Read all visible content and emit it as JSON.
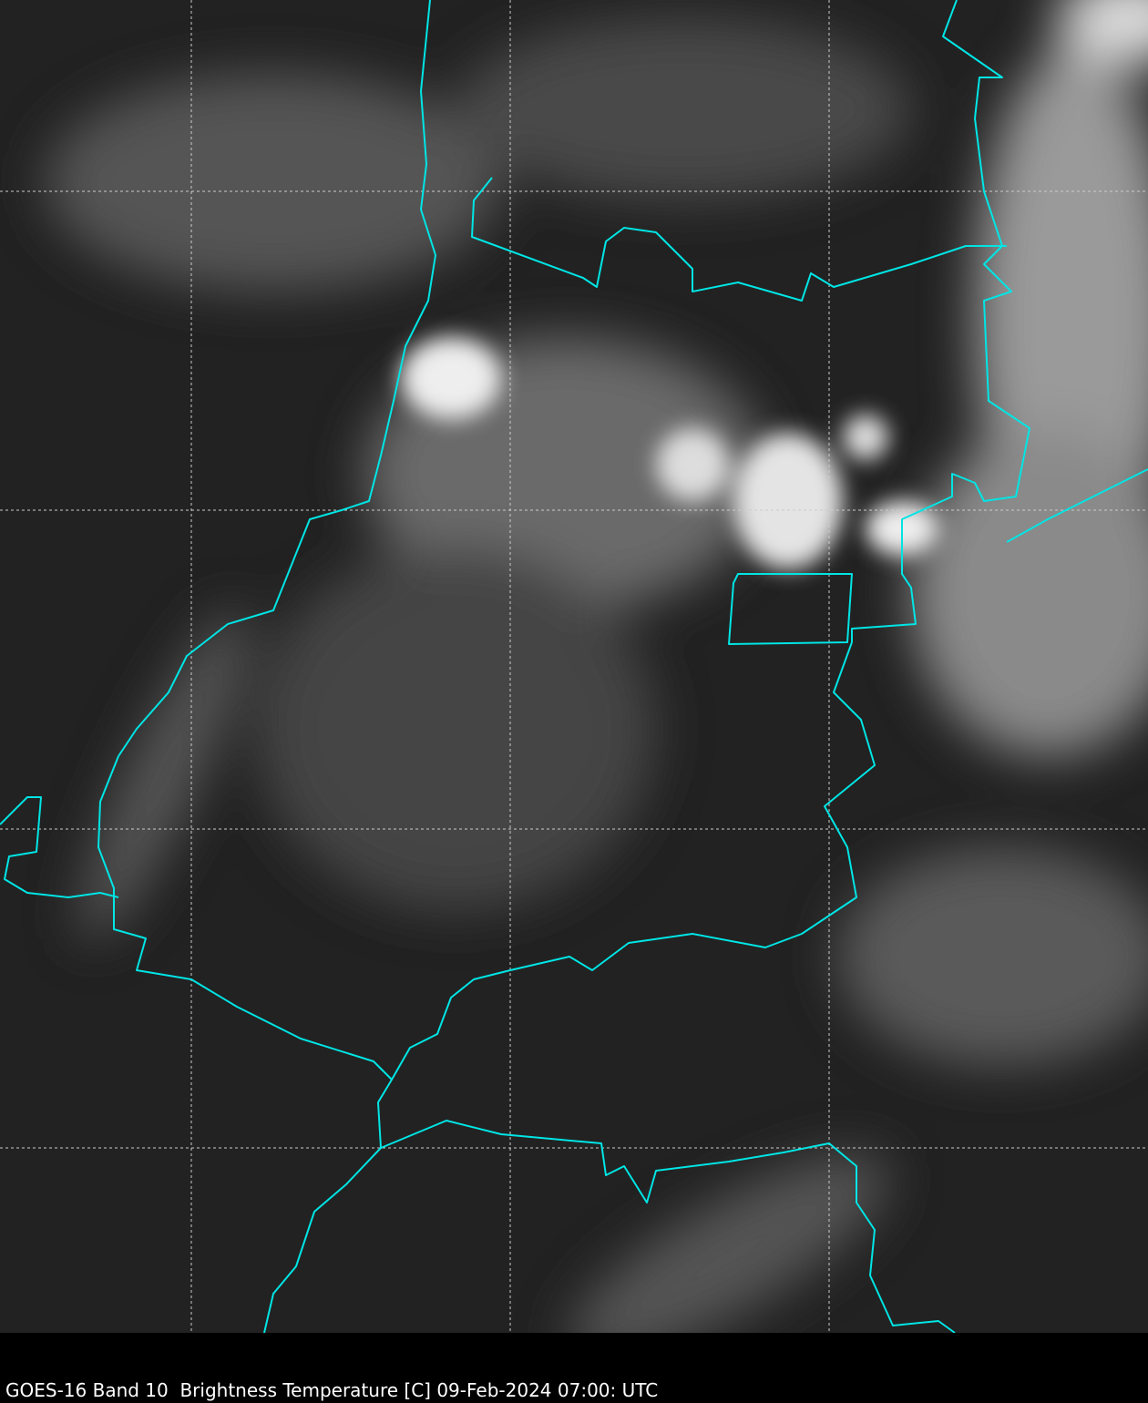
{
  "caption": "GOES-16 Band 10  Brightness Temperature [C] 09-Feb-2024 07:00: UTC",
  "colors": {
    "border": "#00e5e5",
    "grid": "#cccccc",
    "background": "#1e1e1e"
  },
  "layers": [
    "satellite-infrared-imagery",
    "political-borders",
    "lat-lon-grid"
  ]
}
